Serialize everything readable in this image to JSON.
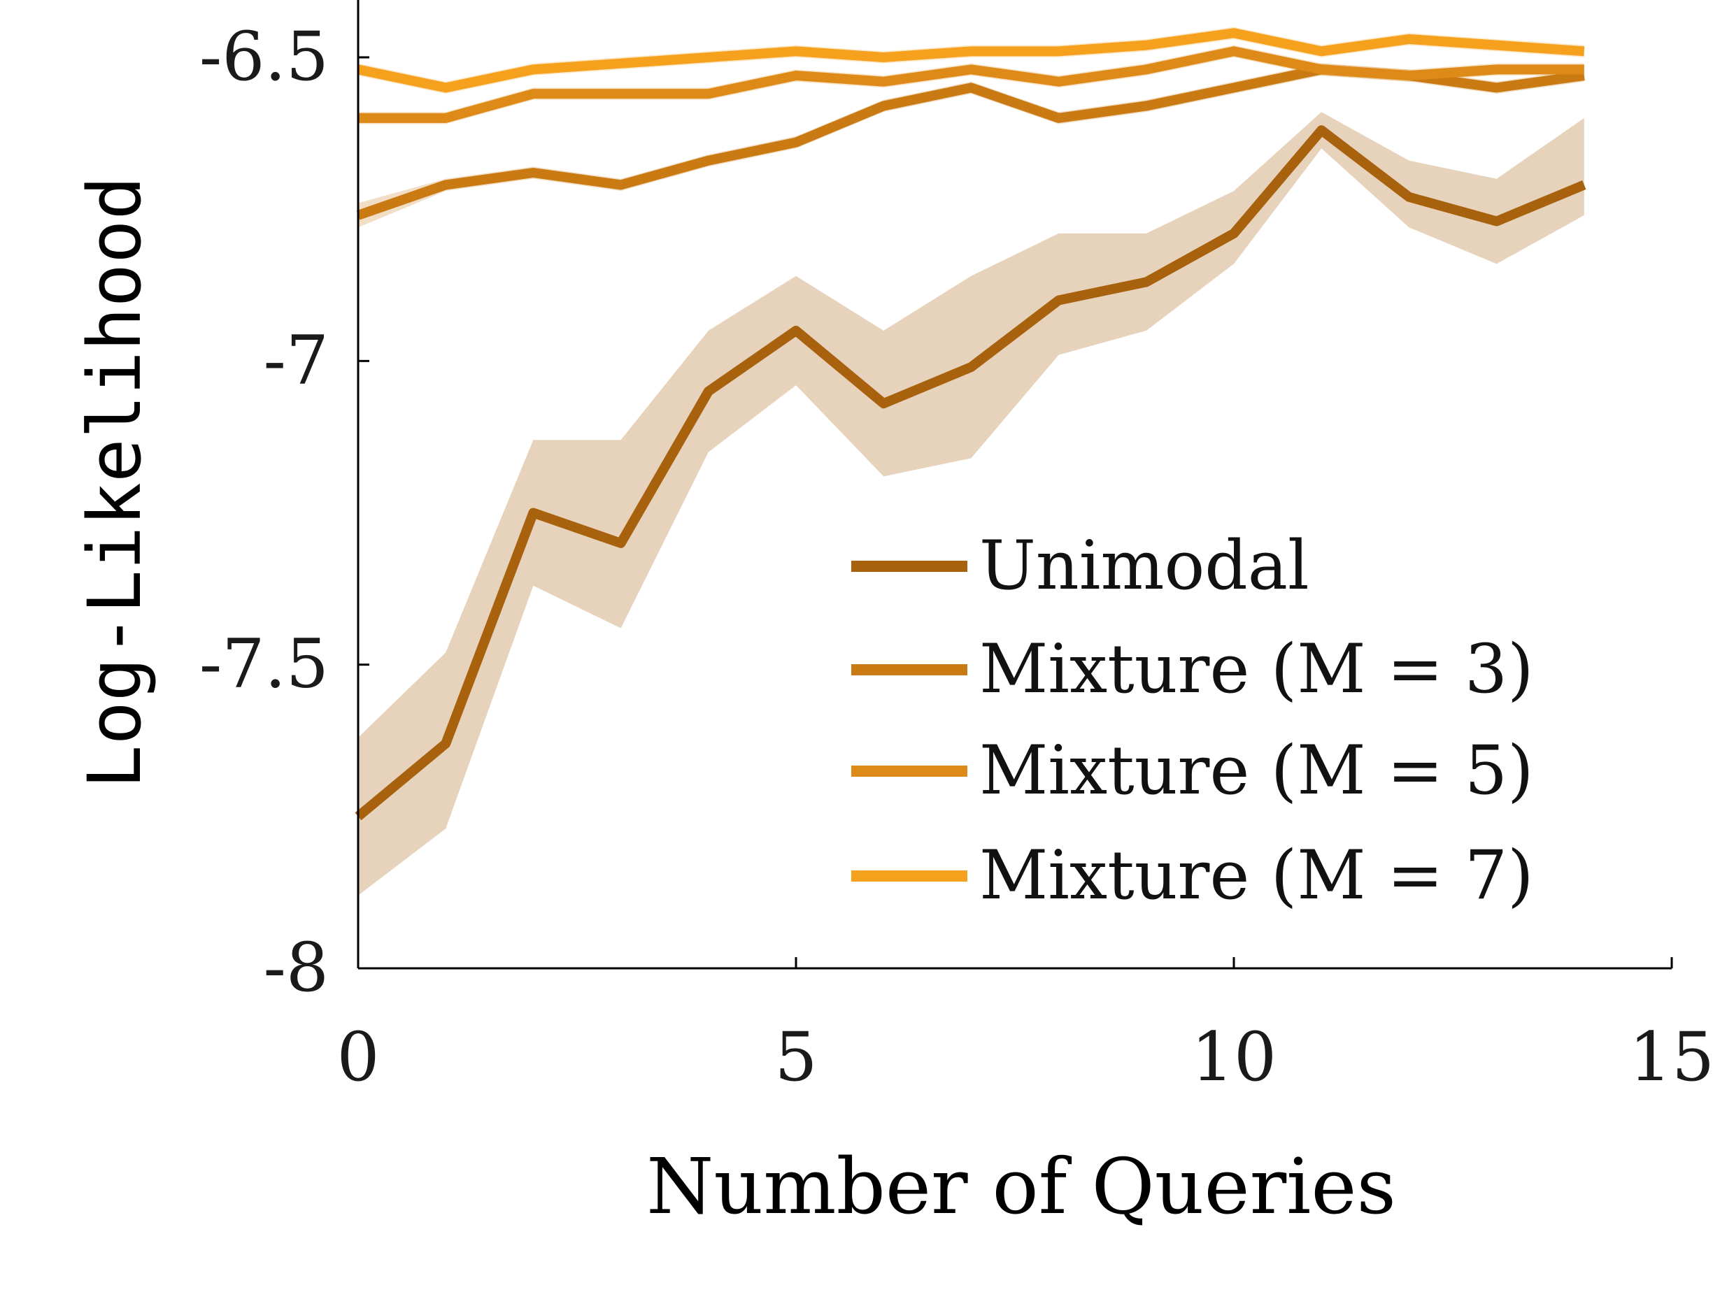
{
  "chart_data": {
    "type": "line",
    "xlabel": "Number of Queries",
    "ylabel": "Log-Likelihood",
    "xlim": [
      0,
      15
    ],
    "ylim": [
      -8,
      -6.45
    ],
    "xticks": [
      0,
      5,
      10,
      15
    ],
    "xtick_labels": [
      "0",
      "5",
      "10",
      "15"
    ],
    "yticks": [
      -6.5,
      -7,
      -7.5,
      -8
    ],
    "ytick_labels": [
      "-6.5",
      "-7",
      "-7.5",
      "-8"
    ],
    "grid": false,
    "legend_position": "lower-right",
    "x": [
      0,
      1,
      2,
      3,
      4,
      5,
      6,
      7,
      8,
      9,
      10,
      11,
      12,
      13,
      14
    ],
    "series": [
      {
        "name": "Unimodal",
        "legend_label": "Unimodal",
        "color": "#A8620E",
        "values": [
          -7.75,
          -7.63,
          -7.25,
          -7.3,
          -7.05,
          -6.95,
          -7.07,
          -7.01,
          -6.9,
          -6.87,
          -6.79,
          -6.62,
          -6.73,
          -6.77,
          -6.71
        ],
        "lower": [
          -7.88,
          -7.77,
          -7.37,
          -7.44,
          -7.15,
          -7.04,
          -7.19,
          -7.16,
          -6.99,
          -6.95,
          -6.84,
          -6.65,
          -6.78,
          -6.84,
          -6.76
        ],
        "upper": [
          -7.62,
          -7.48,
          -7.13,
          -7.13,
          -6.95,
          -6.86,
          -6.95,
          -6.86,
          -6.79,
          -6.79,
          -6.72,
          -6.59,
          -6.67,
          -6.7,
          -6.6
        ]
      },
      {
        "name": "Mixture (M = 3)",
        "legend_label": "Mixture (M = 3)",
        "color": "#C97A12",
        "values": [
          -6.76,
          -6.71,
          -6.69,
          -6.71,
          -6.67,
          -6.64,
          -6.58,
          -6.55,
          -6.6,
          -6.58,
          -6.55,
          -6.52,
          -6.53,
          -6.55,
          -6.53
        ],
        "lower": [
          -6.78,
          -6.72,
          -6.7,
          -6.72,
          -6.68,
          -6.65,
          -6.59,
          -6.56,
          -6.61,
          -6.59,
          -6.56,
          -6.53,
          -6.54,
          -6.56,
          -6.54
        ],
        "upper": [
          -6.74,
          -6.7,
          -6.68,
          -6.7,
          -6.66,
          -6.63,
          -6.57,
          -6.54,
          -6.59,
          -6.57,
          -6.54,
          -6.51,
          -6.52,
          -6.54,
          -6.52
        ]
      },
      {
        "name": "Mixture (M = 5)",
        "legend_label": "Mixture (M = 5)",
        "color": "#DE8A18",
        "values": [
          -6.6,
          -6.6,
          -6.56,
          -6.56,
          -6.56,
          -6.53,
          -6.54,
          -6.52,
          -6.54,
          -6.52,
          -6.49,
          -6.52,
          -6.53,
          -6.52,
          -6.52
        ],
        "lower": [
          -6.61,
          -6.61,
          -6.57,
          -6.57,
          -6.57,
          -6.54,
          -6.55,
          -6.53,
          -6.55,
          -6.53,
          -6.5,
          -6.53,
          -6.54,
          -6.53,
          -6.53
        ],
        "upper": [
          -6.59,
          -6.59,
          -6.55,
          -6.55,
          -6.55,
          -6.52,
          -6.53,
          -6.51,
          -6.53,
          -6.51,
          -6.48,
          -6.51,
          -6.52,
          -6.51,
          -6.51
        ]
      },
      {
        "name": "Mixture (M = 7)",
        "legend_label": "Mixture (M = 7)",
        "color": "#F5A11E",
        "values": [
          -6.52,
          -6.55,
          -6.52,
          -6.51,
          -6.5,
          -6.49,
          -6.5,
          -6.49,
          -6.49,
          -6.48,
          -6.46,
          -6.49,
          -6.47,
          -6.48,
          -6.49
        ],
        "lower": [
          -6.53,
          -6.56,
          -6.53,
          -6.52,
          -6.51,
          -6.5,
          -6.51,
          -6.5,
          -6.5,
          -6.49,
          -6.47,
          -6.5,
          -6.48,
          -6.49,
          -6.5
        ],
        "upper": [
          -6.51,
          -6.54,
          -6.51,
          -6.5,
          -6.49,
          -6.48,
          -6.49,
          -6.48,
          -6.48,
          -6.47,
          -6.45,
          -6.48,
          -6.46,
          -6.47,
          -6.48
        ]
      }
    ]
  }
}
